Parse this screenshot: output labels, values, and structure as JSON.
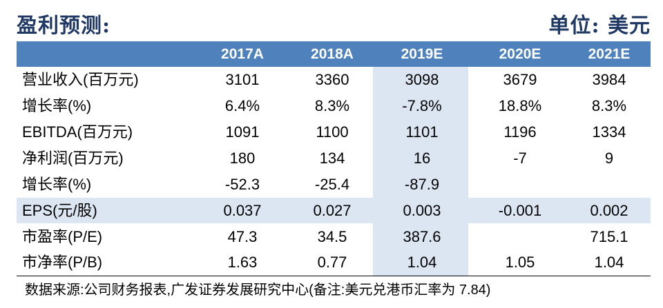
{
  "header": {
    "title": "盈利预测:",
    "unit": "单位: 美元"
  },
  "table": {
    "columns": [
      "2017A",
      "2018A",
      "2019E",
      "2020E",
      "2021E"
    ],
    "rows": [
      {
        "label": "营业收入(百万元)",
        "values": [
          "3101",
          "3360",
          "3098",
          "3679",
          "3984"
        ]
      },
      {
        "label": "增长率(%)",
        "values": [
          "6.4%",
          "8.3%",
          "-7.8%",
          "18.8%",
          "8.3%"
        ]
      },
      {
        "label": "EBITDA(百万元)",
        "values": [
          "1091",
          "1100",
          "1101",
          "1196",
          "1334"
        ]
      },
      {
        "label": "净利润(百万元)",
        "values": [
          "180",
          "134",
          "16",
          "-7",
          "9"
        ]
      },
      {
        "label": "增长率(%)",
        "values": [
          "-52.3",
          "-25.4",
          "-87.9",
          "",
          ""
        ]
      },
      {
        "label": "EPS(元/股)",
        "values": [
          "0.037",
          "0.027",
          "0.003",
          "-0.001",
          "0.002"
        ]
      },
      {
        "label": "市盈率(P/E)",
        "values": [
          "47.3",
          "34.5",
          "387.6",
          "",
          "715.1"
        ]
      },
      {
        "label": "市净率(P/B)",
        "values": [
          "1.63",
          "0.77",
          "1.04",
          "1.05",
          "1.04"
        ]
      }
    ]
  },
  "footer": {
    "source": "数据来源:公司财务报表,广发证券发展研究中心(备注:美元兑港币汇率为 7.84)"
  },
  "colors": {
    "header_bg": "#4f81bd",
    "highlight_bg": "#dce6f2",
    "title_color": "#1f3864"
  }
}
